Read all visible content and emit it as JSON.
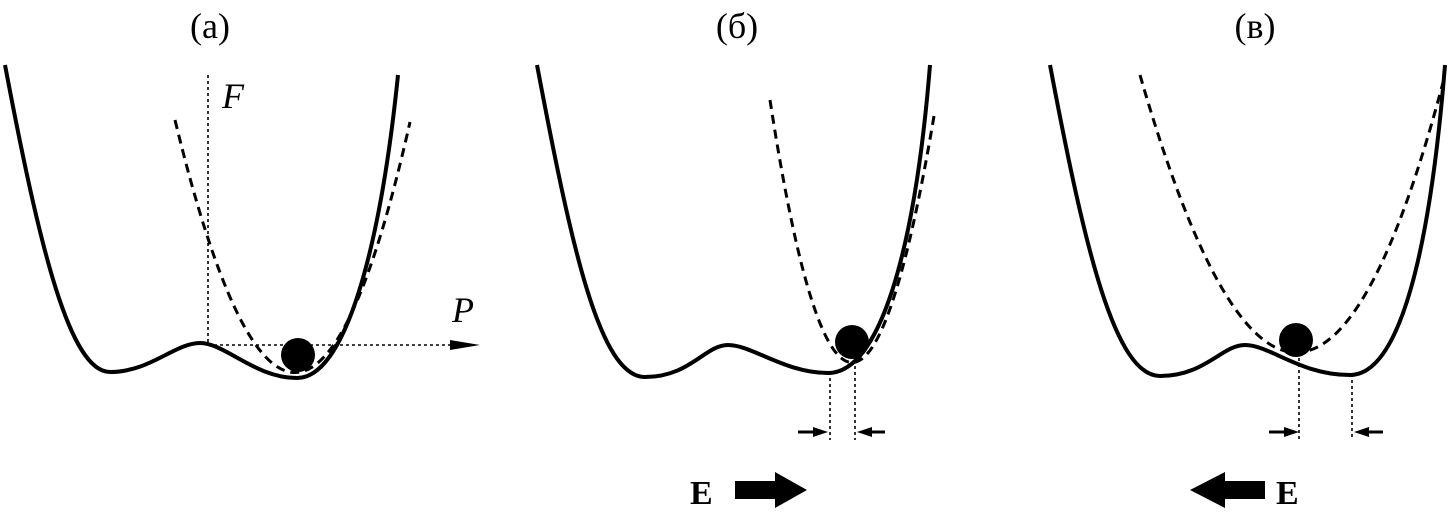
{
  "panels": [
    {
      "label": "(а)"
    },
    {
      "label": "(б)"
    },
    {
      "label": "(в)"
    }
  ],
  "axes": {
    "f": "F",
    "p": "P"
  },
  "field_labels": [
    "E",
    "E"
  ]
}
